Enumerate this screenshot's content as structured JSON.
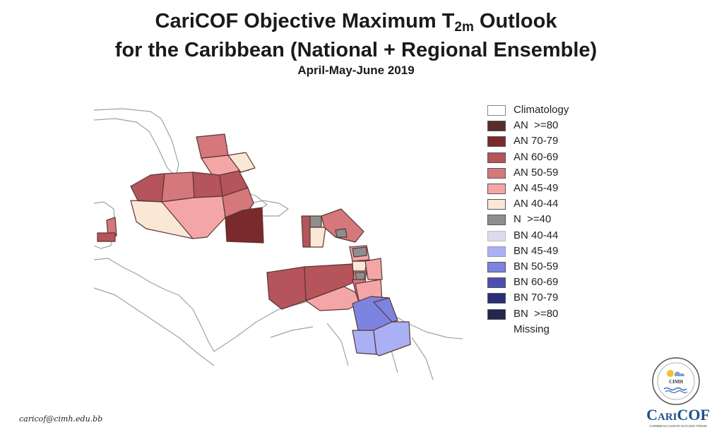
{
  "title": {
    "line1_prefix": "CariCOF Objective Maximum T",
    "line1_sub": "2m",
    "line1_suffix": " Outlook",
    "line2": "for the Caribbean (National + Regional Ensemble)",
    "line3": "April-May-June 2019"
  },
  "colors": {
    "climatology": "#ffffff",
    "an_80": "#5a2b2b",
    "an_70_79": "#7a2a2a",
    "an_60_69": "#b5545a",
    "an_50_59": "#d4787c",
    "an_45_49": "#f4a6a6",
    "an_40_44": "#fbe7d6",
    "n_40": "#8e8e8e",
    "bn_40_44": "#dcdaee",
    "bn_45_49": "#aab0f4",
    "bn_50_59": "#7d84e0",
    "bn_60_69": "#4d4fb0",
    "bn_70_79": "#2a2d7a",
    "bn_80": "#25264e",
    "land_outline": "#9aa5a5"
  },
  "legend": [
    {
      "label": "Climatology",
      "color": "#ffffff"
    },
    {
      "label": "AN  >=80",
      "color": "#5a2b2b"
    },
    {
      "label": "AN 70-79",
      "color": "#7a2a2a"
    },
    {
      "label": "AN 60-69",
      "color": "#b5545a"
    },
    {
      "label": "AN 50-59",
      "color": "#d4787c"
    },
    {
      "label": "AN 45-49",
      "color": "#f4a6a6"
    },
    {
      "label": "AN 40-44",
      "color": "#fbe7d6"
    },
    {
      "label": "N  >=40",
      "color": "#8e8e8e"
    },
    {
      "label": "BN 40-44",
      "color": "#dcdaee"
    },
    {
      "label": "BN 45-49",
      "color": "#aab0f4"
    },
    {
      "label": "BN 50-59",
      "color": "#7d84e0"
    },
    {
      "label": "BN 60-69",
      "color": "#4d4fb0"
    },
    {
      "label": "BN 70-79",
      "color": "#2a2d7a"
    },
    {
      "label": "BN  >=80",
      "color": "#25264e"
    },
    {
      "label": "Missing",
      "color": null
    }
  ],
  "footer": {
    "email": "caricof@cimh.edu.bb"
  },
  "logo": {
    "seal_text": "CIMH",
    "wordmark": "CariCOF",
    "tagline": "CARIBBEAN CLIMATE OUTLOOK FORUM"
  }
}
